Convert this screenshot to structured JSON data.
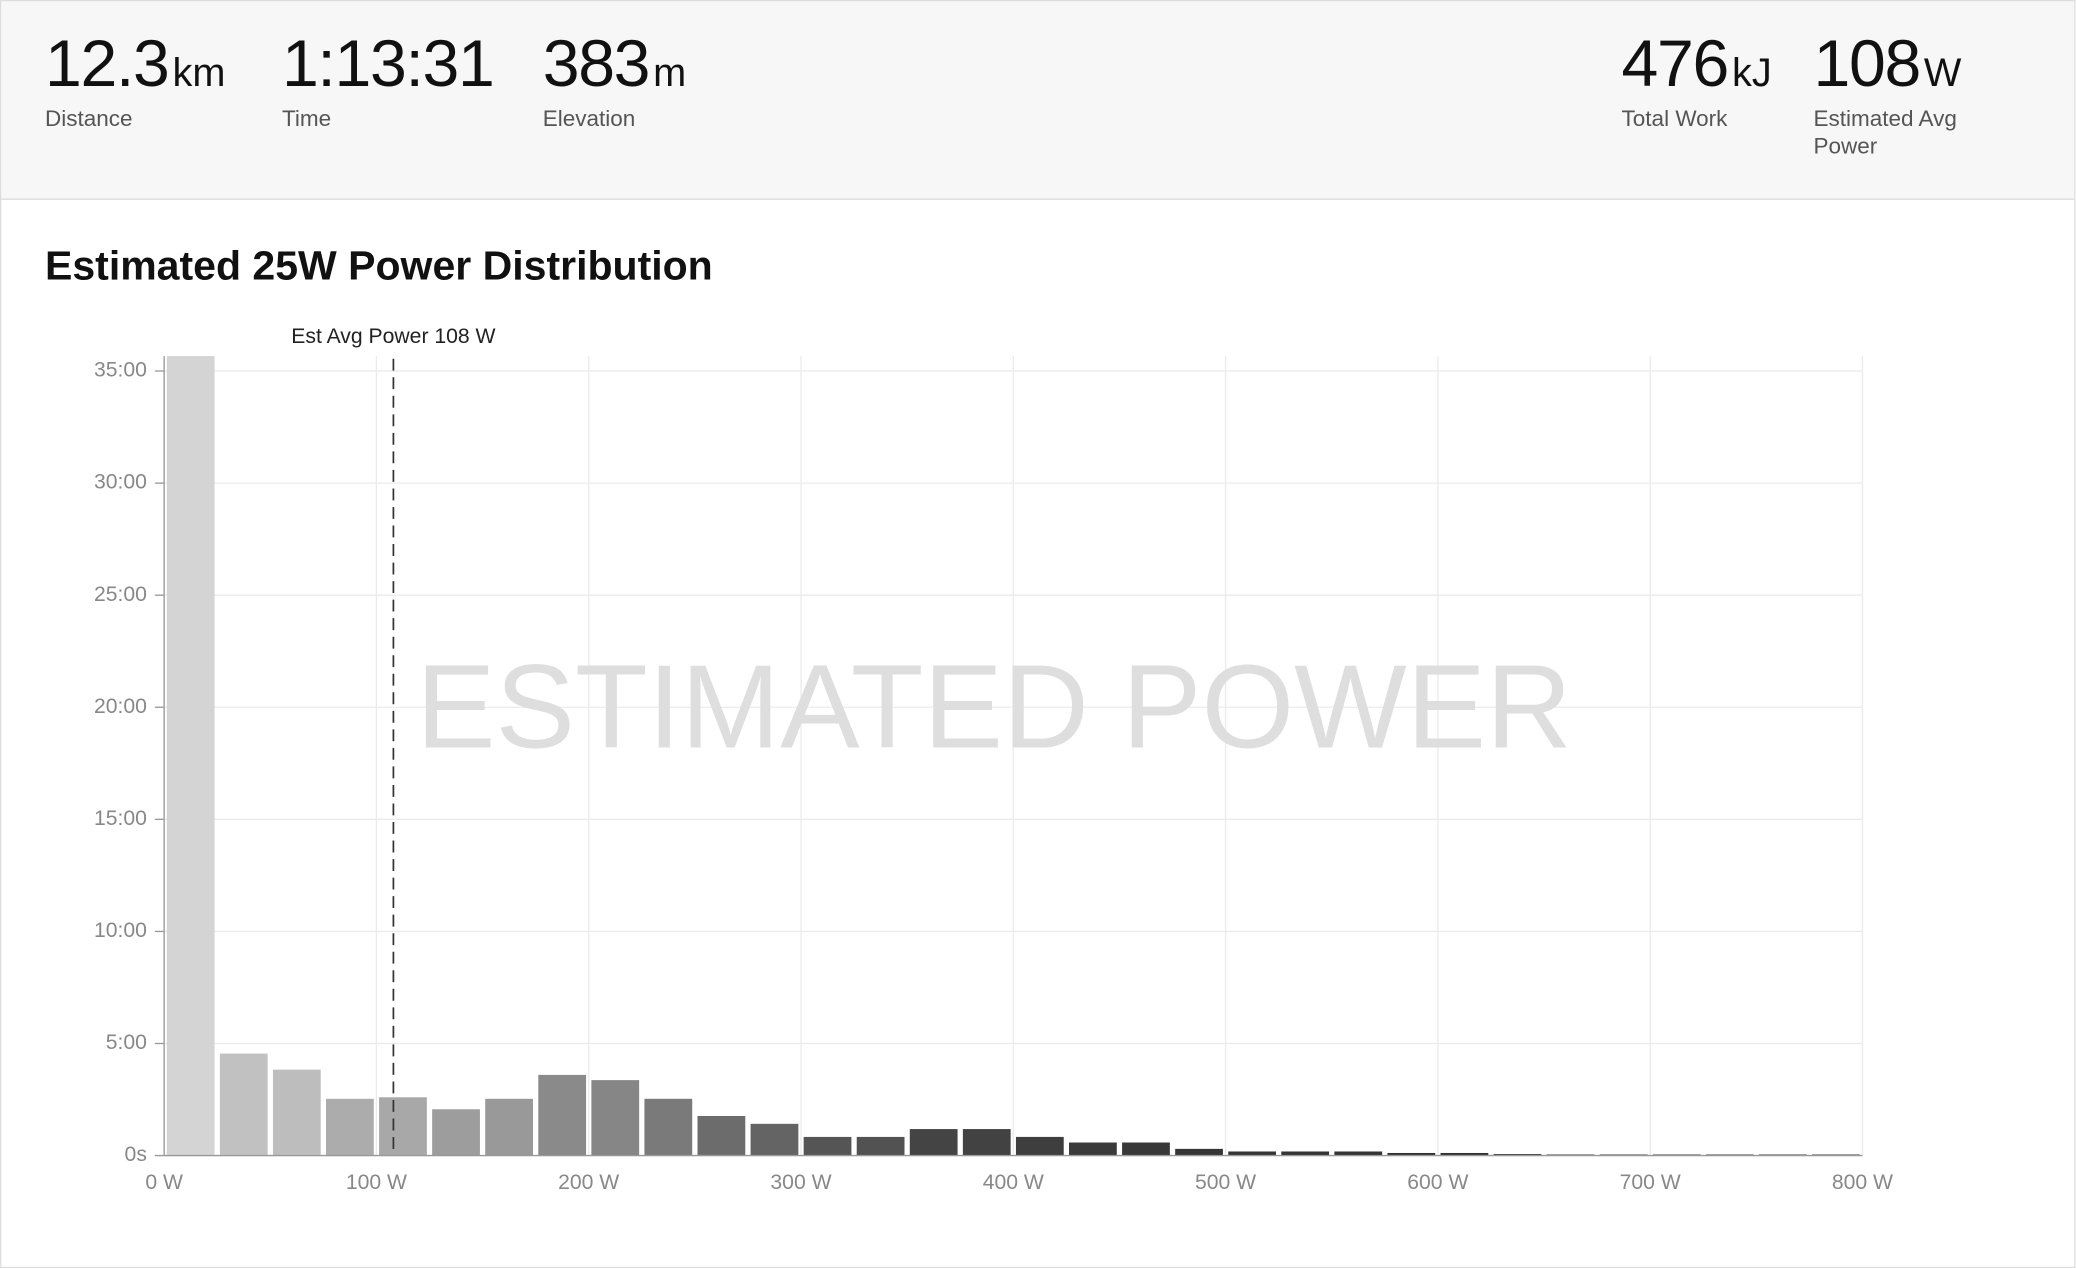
{
  "stats": [
    {
      "value": 12.3,
      "unit": "km",
      "label": "Distance"
    },
    {
      "value": "1:13:31",
      "label": "Time"
    },
    {
      "value": 383,
      "unit": "m",
      "label": "Elevation"
    },
    {
      "value": 476,
      "unit": "kJ",
      "label": "Total Work"
    },
    {
      "value": 108,
      "unit": "W",
      "label": "Estimated Avg Power"
    }
  ],
  "chart_data": {
    "type": "histogram",
    "title": "Estimated 25W Power Distribution",
    "watermark": "ESTIMATED POWER",
    "bins": [
      0,
      25,
      50,
      75,
      100,
      125,
      150,
      175,
      200,
      225,
      250,
      275,
      300,
      325,
      350,
      375,
      400,
      425,
      450,
      475,
      500,
      525,
      550,
      575,
      600,
      625,
      650,
      675,
      700,
      725,
      750,
      775,
      800
    ],
    "counts": [
      2140,
      273,
      230,
      152,
      156,
      124,
      152,
      216,
      202,
      152,
      106,
      85,
      50,
      50,
      71,
      71,
      50,
      35,
      35,
      18,
      11,
      11,
      11,
      7,
      7,
      4,
      3,
      3,
      3,
      3,
      3,
      3
    ],
    "colors": [
      "#d4d4d4",
      "#c1c1c1",
      "#bdbdbd",
      "#acacac",
      "#a8a8a8",
      "#9d9d9d",
      "#999999",
      "#8a8a8a",
      "#868686",
      "#7a7a7a",
      "#6c6c6c",
      "#646464",
      "#555555",
      "#525252",
      "#444444",
      "#424242",
      "#3e3e3e",
      "#3a3a3a",
      "#383838",
      "#363636",
      "#353535",
      "#343434",
      "#343434",
      "#333333",
      "#333333",
      "#333333",
      "#333333",
      "#333333",
      "#333333",
      "#333333",
      "#333333",
      "#333333"
    ],
    "avg_line": {
      "value": 108,
      "label": "Est Avg Power 108 W"
    },
    "xlim": [
      0,
      800
    ],
    "xticks": [
      {
        "value": 0,
        "label": "0 W"
      },
      {
        "value": 100,
        "label": "100 W"
      },
      {
        "value": 200,
        "label": "200 W"
      },
      {
        "value": 300,
        "label": "300 W"
      },
      {
        "value": 400,
        "label": "400 W"
      },
      {
        "value": 500,
        "label": "500 W"
      },
      {
        "value": 600,
        "label": "600 W"
      },
      {
        "value": 700,
        "label": "700 W"
      },
      {
        "value": 800,
        "label": "800 W"
      }
    ],
    "ylim": [
      0,
      2140
    ],
    "yticks": [
      {
        "value": 0,
        "label": "0s"
      },
      {
        "value": 300,
        "label": "5:00"
      },
      {
        "value": 600,
        "label": "10:00"
      },
      {
        "value": 900,
        "label": "15:00"
      },
      {
        "value": 1200,
        "label": "20:00"
      },
      {
        "value": 1500,
        "label": "25:00"
      },
      {
        "value": 1800,
        "label": "30:00"
      },
      {
        "value": 2100,
        "label": "35:00"
      }
    ],
    "grid": true
  }
}
